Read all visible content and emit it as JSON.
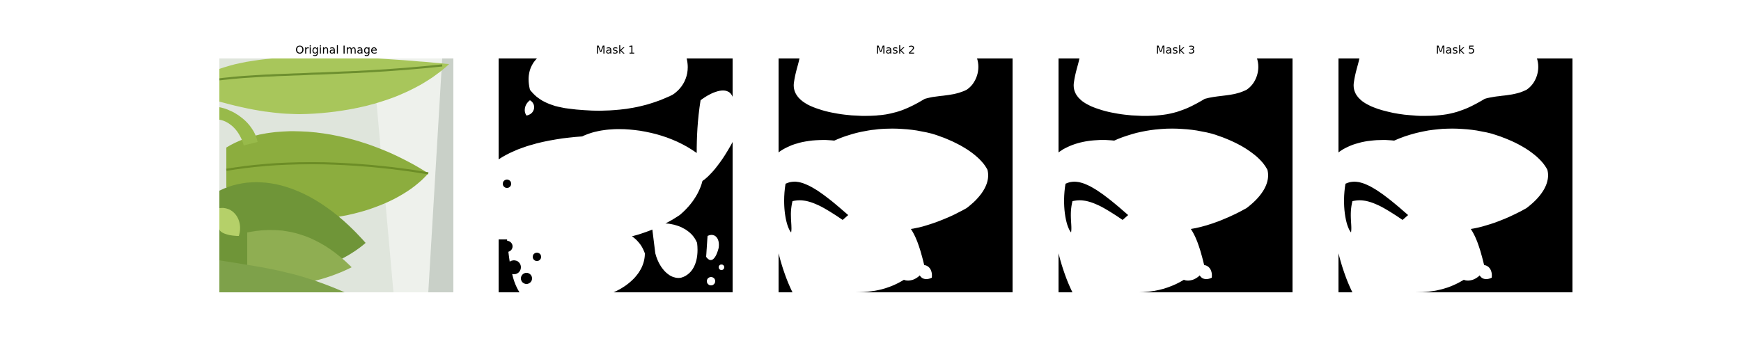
{
  "panels": [
    {
      "title": "Original Image",
      "type": "photo"
    },
    {
      "title": "Mask 1",
      "type": "mask"
    },
    {
      "title": "Mask 2",
      "type": "mask"
    },
    {
      "title": "Mask 3",
      "type": "mask"
    },
    {
      "title": "Mask 5",
      "type": "mask"
    }
  ],
  "colors": {
    "background": "#ffffff",
    "mask_fg": "#ffffff",
    "mask_bg": "#000000",
    "leaf_light": "#b7cf6c",
    "leaf_mid": "#8fb04a",
    "leaf_dark": "#5b7f2b",
    "tray": "#e7ece6"
  }
}
